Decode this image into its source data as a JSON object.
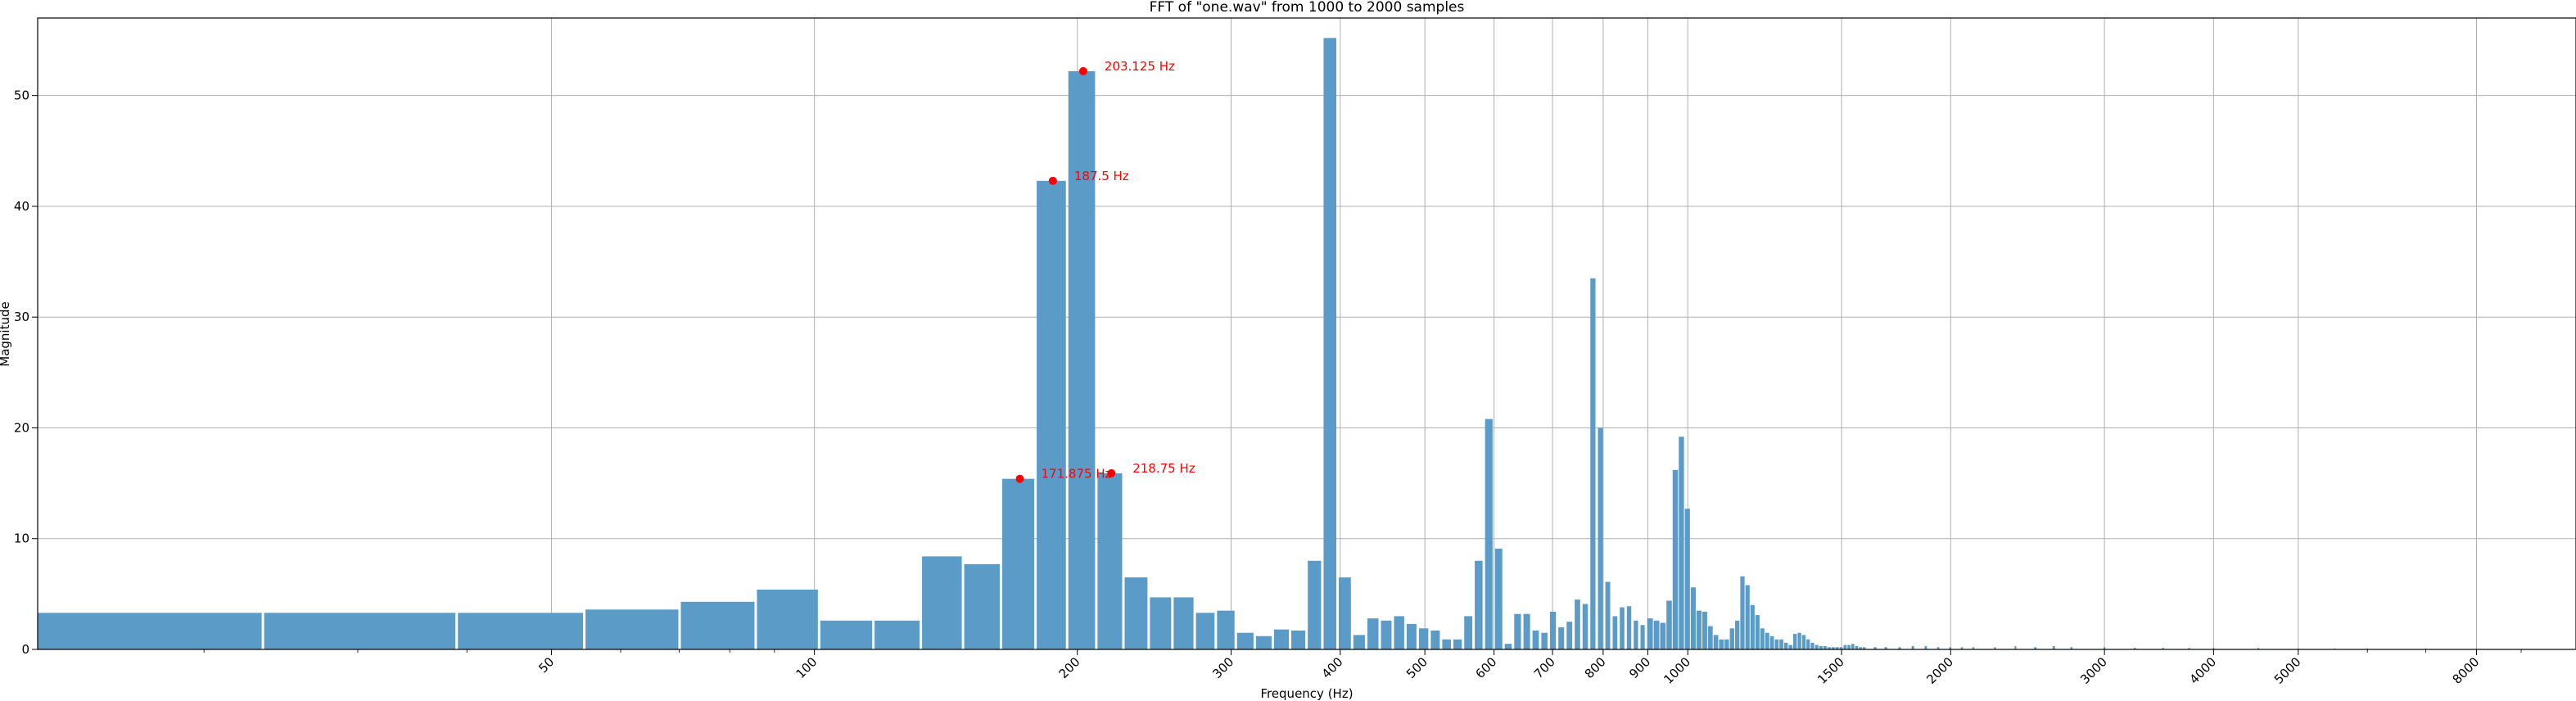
{
  "chart_data": {
    "type": "bar",
    "title": "FFT of \"one.wav\" from 1000 to 2000 samples",
    "xlabel": "Frequency (Hz)",
    "ylabel": "Magnitude",
    "xscale": "log",
    "bin_width": 15.625,
    "xlim": [
      12.9,
      10400
    ],
    "ylim": [
      0,
      57
    ],
    "grid": true,
    "bar_color": "#5b9bc8",
    "marker_color": "#ff0000",
    "x_ticks": [
      50,
      100,
      200,
      300,
      400,
      500,
      600,
      700,
      800,
      900,
      1000,
      1500,
      2000,
      3000,
      4000,
      5000,
      8000
    ],
    "x_tick_labels": [
      "50",
      "100",
      "200",
      "300",
      "400",
      "500",
      "600",
      "700",
      "800",
      "900",
      "1000",
      "1500",
      "2000",
      "3000",
      "4000",
      "5000",
      "8000"
    ],
    "y_ticks": [
      0,
      10,
      20,
      30,
      40,
      50
    ],
    "y_tick_labels": [
      "0",
      "10",
      "20",
      "30",
      "40",
      "50"
    ],
    "x": [
      15.625,
      31.25,
      46.875,
      62.5,
      78.125,
      93.75,
      109.375,
      125,
      140.625,
      156.25,
      171.875,
      187.5,
      203.125,
      218.75,
      234.375,
      250,
      265.625,
      281.25,
      296.875,
      312.5,
      328.125,
      343.75,
      359.375,
      375,
      390.625,
      406.25,
      421.875,
      437.5,
      453.125,
      468.75,
      484.375,
      500,
      515.625,
      531.25,
      546.875,
      562.5,
      578.125,
      593.75,
      609.375,
      625,
      640.625,
      656.25,
      671.875,
      687.5,
      703.125,
      718.75,
      734.375,
      750,
      765.625,
      781.25,
      796.875,
      812.5,
      828.125,
      843.75,
      859.375,
      875,
      890.625,
      906.25,
      921.875,
      937.5,
      953.125,
      968.75,
      984.375,
      1000,
      1015.625,
      1031.25,
      1046.875,
      1062.5,
      1078.125,
      1093.75,
      1109.375,
      1125,
      1140.625,
      1156.25,
      1171.875,
      1187.5,
      1203.125,
      1218.75,
      1234.375,
      1250,
      1265.625,
      1281.25,
      1296.875,
      1312.5,
      1328.125,
      1343.75,
      1359.375,
      1375,
      1390.625,
      1406.25,
      1421.875,
      1437.5,
      1453.125,
      1468.75,
      1484.375,
      1500
    ],
    "values": [
      3.3,
      3.3,
      3.3,
      3.6,
      4.3,
      5.4,
      2.6,
      2.6,
      8.4,
      7.7,
      15.4,
      42.3,
      52.2,
      15.9,
      6.5,
      4.7,
      4.7,
      3.3,
      3.5,
      1.5,
      1.2,
      1.8,
      1.7,
      8.0,
      55.2,
      6.5,
      1.3,
      2.8,
      2.6,
      3.0,
      2.3,
      1.9,
      1.7,
      0.9,
      0.9,
      3.0,
      8.0,
      20.8,
      9.1,
      0.5,
      3.2,
      3.2,
      1.7,
      1.5,
      3.4,
      2.0,
      2.5,
      4.5,
      4.1,
      33.5,
      20.0,
      6.1,
      3.0,
      3.8,
      3.9,
      2.6,
      2.2,
      2.8,
      2.6,
      2.4,
      4.4,
      16.2,
      19.2,
      12.7,
      5.6,
      3.5,
      3.4,
      2.1,
      1.3,
      0.9,
      0.9,
      1.9,
      2.6,
      6.6,
      5.8,
      4.0,
      3.1,
      1.9,
      1.5,
      1.2,
      0.9,
      0.9,
      0.6,
      0.4,
      1.4,
      1.5,
      1.3,
      0.9,
      0.6,
      0.4,
      0.3,
      0.3,
      0.2,
      0.2,
      0.2,
      0.2
    ],
    "tail_x": [
      1515.625,
      1531.25,
      1546.875,
      1562.5,
      1578.125,
      1593.75,
      1640.625,
      1687.5,
      1750,
      1812.5,
      1875,
      1937.5,
      2000,
      2062.5,
      2125,
      2250,
      2375,
      2500,
      2625,
      2750,
      3000,
      3250,
      3500,
      3750,
      4000,
      4500,
      5000,
      5500,
      6000,
      7000,
      8000
    ],
    "tail_values": [
      0.4,
      0.4,
      0.5,
      0.3,
      0.2,
      0.2,
      0.2,
      0.2,
      0.2,
      0.3,
      0.3,
      0.2,
      0.2,
      0.2,
      0.2,
      0.2,
      0.3,
      0.2,
      0.3,
      0.2,
      0.2,
      0.15,
      0.15,
      0.15,
      0.15,
      0.15,
      0.1,
      0.1,
      0.1,
      0.1,
      0.1
    ],
    "peaks": [
      {
        "x": 171.875,
        "y": 15.4,
        "label": "171.875 Hz"
      },
      {
        "x": 187.5,
        "y": 42.3,
        "label": "187.5 Hz"
      },
      {
        "x": 203.125,
        "y": 52.2,
        "label": "203.125 Hz"
      },
      {
        "x": 218.75,
        "y": 15.9,
        "label": "218.75 Hz"
      }
    ]
  }
}
